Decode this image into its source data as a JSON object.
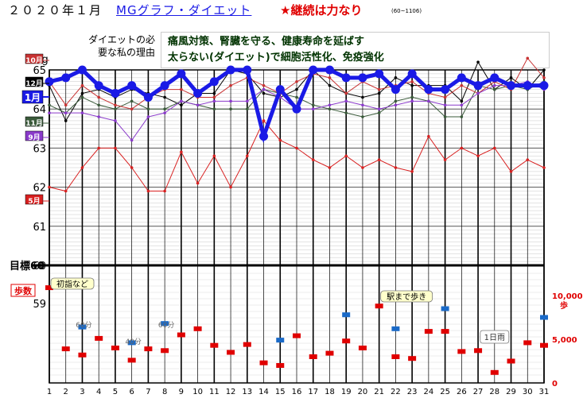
{
  "header": {
    "year_month": "２０２０年１月",
    "site_link": "MGグラフ・ダイエット",
    "slogan": "★継続は力なり",
    "id_range": "(60~1106)"
  },
  "reason": {
    "title_line1": "ダイエットの必",
    "title_line2": "要な私の理由",
    "line1": "痛風対策、腎臓を守る、健康寿命を延ばす",
    "line2": "太らない(ダイエット)で細胞活性化、免疫強化"
  },
  "chart_data": {
    "type": "line",
    "x": [
      1,
      2,
      3,
      4,
      5,
      6,
      7,
      8,
      9,
      10,
      11,
      12,
      13,
      14,
      15,
      16,
      17,
      18,
      19,
      20,
      21,
      22,
      23,
      24,
      25,
      26,
      27,
      28,
      29,
      30,
      31
    ],
    "weight_axis": {
      "unit": "Kg",
      "ticks": [
        59,
        60,
        61,
        62,
        63,
        64,
        65
      ],
      "target_label": "目標",
      "target_value": 60
    },
    "steps_axis": {
      "unit": "歩",
      "ticks": [
        "0",
        "5,000",
        "10,000"
      ]
    },
    "series": [
      {
        "name": "1月",
        "color": "#1a1ae6",
        "values": [
          64.7,
          64.8,
          65.0,
          64.6,
          64.4,
          64.6,
          64.3,
          64.6,
          64.9,
          64.4,
          64.7,
          65.0,
          65.0,
          63.3,
          64.5,
          64.0,
          65.0,
          65.0,
          64.8,
          64.8,
          64.9,
          64.5,
          64.9,
          64.5,
          64.5,
          64.8,
          64.6,
          64.8,
          64.6,
          64.6,
          64.6
        ]
      },
      {
        "name": "12月",
        "color": "#000000",
        "values": [
          64.6,
          63.7,
          64.4,
          64.5,
          64.3,
          64.5,
          64.4,
          64.3,
          64.1,
          64.4,
          64.4,
          65.0,
          64.9,
          64.4,
          64.3,
          64.5,
          65.0,
          64.6,
          64.4,
          64.3,
          64.4,
          64.8,
          64.6,
          64.6,
          64.6,
          64.2,
          65.2,
          64.5,
          64.8,
          64.5,
          65.0
        ]
      },
      {
        "name": "11月",
        "color": "#3a5a3a",
        "values": [
          64.1,
          63.9,
          64.3,
          64.1,
          64.0,
          64.2,
          64.0,
          64.0,
          64.2,
          64.1,
          64.0,
          64.0,
          64.0,
          64.5,
          64.4,
          64.3,
          64.1,
          64.0,
          63.9,
          63.8,
          63.9,
          64.2,
          64.3,
          64.2,
          63.8,
          63.8,
          64.6,
          64.5,
          64.6,
          64.5,
          64.7
        ]
      },
      {
        "name": "10月",
        "color": "#c83232",
        "values": [
          64.7,
          64.1,
          64.6,
          64.3,
          64.1,
          64.0,
          64.3,
          64.5,
          64.5,
          64.3,
          64.3,
          64.6,
          64.8,
          64.6,
          64.4,
          64.7,
          64.9,
          64.8,
          64.4,
          64.7,
          64.5,
          64.6,
          64.7,
          64.4,
          64.3,
          64.6,
          64.4,
          64.7,
          64.5,
          65.3,
          64.8
        ]
      },
      {
        "name": "9月",
        "color": "#8a3aca",
        "values": [
          63.9,
          63.9,
          63.9,
          63.8,
          63.7,
          63.2,
          63.8,
          63.9,
          64.2,
          64.1,
          64.2,
          64.2,
          64.2,
          64.5,
          64.3,
          64.0,
          64.0,
          64.1,
          64.2,
          64.1,
          64.0,
          64.1,
          64.2,
          64.2,
          64.1,
          64.1,
          64.4,
          64.6,
          64.6,
          64.7,
          64.5
        ]
      },
      {
        "name": "5月",
        "color": "#d82020",
        "values": [
          62.0,
          61.9,
          62.5,
          63.0,
          63.0,
          62.5,
          61.9,
          61.9,
          62.9,
          62.1,
          62.8,
          62.0,
          62.8,
          63.7,
          63.2,
          63.0,
          62.7,
          62.5,
          62.8,
          62.5,
          62.7,
          62.5,
          62.4,
          63.3,
          62.7,
          63.0,
          62.8,
          63.0,
          62.4,
          62.7,
          62.5
        ]
      }
    ],
    "steps": [
      10900,
      3900,
      3200,
      5100,
      4000,
      2600,
      3900,
      3700,
      5500,
      6200,
      4300,
      3500,
      4400,
      2300,
      2000,
      5400,
      3000,
      3400,
      4800,
      4000,
      8800,
      3000,
      2800,
      5900,
      5900,
      3600,
      3700,
      1200,
      2500,
      4600,
      4300
    ],
    "steps_alt": {
      "days": [
        3,
        6,
        8,
        15,
        19,
        22,
        25,
        31
      ],
      "values": [
        6400,
        4600,
        6800,
        4900,
        7800,
        6200,
        8500,
        7500
      ]
    },
    "annotations": [
      {
        "day": 1,
        "text": "初詣など",
        "kind": "callout"
      },
      {
        "day": 3,
        "text": "60分",
        "kind": "small"
      },
      {
        "day": 6,
        "text": "40分",
        "kind": "small"
      },
      {
        "day": 8,
        "text": "60分",
        "kind": "small"
      },
      {
        "day": 21,
        "text": "駅まで歩き",
        "kind": "callout"
      },
      {
        "day": 28,
        "text": "1日雨",
        "kind": "box"
      }
    ],
    "series_labels": {
      "steps": "歩数"
    },
    "grid": true
  }
}
